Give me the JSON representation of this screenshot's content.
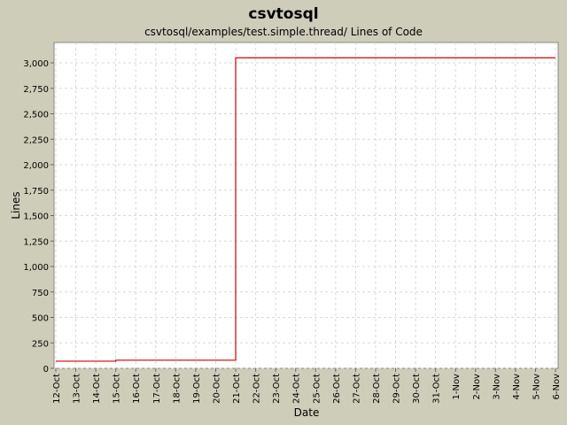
{
  "chart_data": {
    "type": "line",
    "title": "csvtosql",
    "subtitle": "csvtosql/examples/test.simple.thread/ Lines of Code",
    "x_label": "Date",
    "y_label": "Lines",
    "x": [
      "12-Oct",
      "15-Oct",
      "21-Oct",
      "6-Nov"
    ],
    "series": [
      {
        "name": "Lines of Code",
        "color": "#cc0000",
        "values": [
          70,
          80,
          3050,
          3050
        ]
      }
    ],
    "xlim": [
      "12-Oct",
      "6-Nov"
    ],
    "xticks": [
      "12-Oct",
      "13-Oct",
      "14-Oct",
      "15-Oct",
      "16-Oct",
      "17-Oct",
      "18-Oct",
      "19-Oct",
      "20-Oct",
      "21-Oct",
      "22-Oct",
      "23-Oct",
      "24-Oct",
      "25-Oct",
      "26-Oct",
      "27-Oct",
      "28-Oct",
      "29-Oct",
      "30-Oct",
      "31-Oct",
      "1-Nov",
      "2-Nov",
      "3-Nov",
      "4-Nov",
      "5-Nov",
      "6-Nov"
    ],
    "ylim": [
      0,
      3200
    ],
    "yticks": [
      0,
      250,
      500,
      750,
      {
        "value": 1000,
        "label": "1,000"
      },
      {
        "value": 1250,
        "label": "1,250"
      },
      {
        "value": 1500,
        "label": "1,500"
      },
      {
        "value": 1750,
        "label": "1,750"
      },
      {
        "value": 2000,
        "label": "2,000"
      },
      {
        "value": 2250,
        "label": "2,250"
      },
      {
        "value": 2500,
        "label": "2,500"
      },
      {
        "value": 2750,
        "label": "2,750"
      },
      {
        "value": 3000,
        "label": "3,000"
      }
    ],
    "grid": true
  }
}
